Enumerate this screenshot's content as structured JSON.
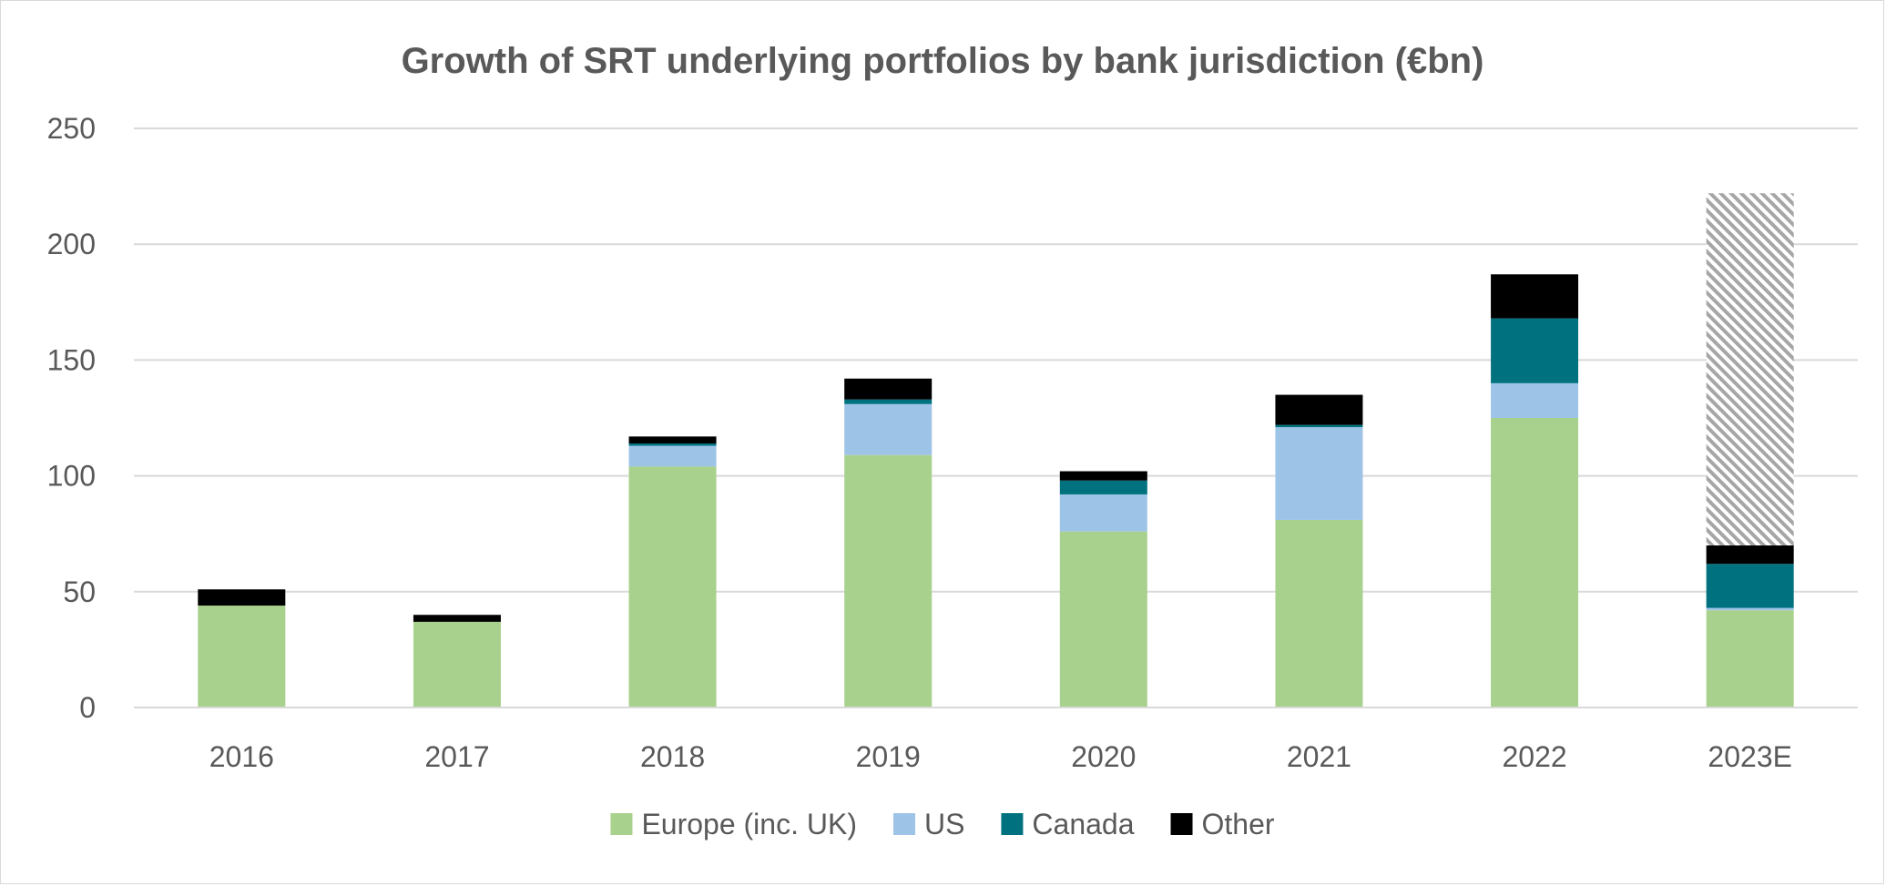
{
  "chart_data": {
    "type": "bar",
    "stacked": true,
    "title": "Growth of SRT underlying portfolios by bank jurisdiction (€bn)",
    "xlabel": "",
    "ylabel": "",
    "ylim": [
      0,
      250
    ],
    "yticks": [
      0,
      50,
      100,
      150,
      200,
      250
    ],
    "grid": true,
    "legend_position": "bottom",
    "categories": [
      "2016",
      "2017",
      "2018",
      "2019",
      "2020",
      "2021",
      "2022",
      "2023E"
    ],
    "series": [
      {
        "name": "Europe (inc. UK)",
        "color": "#a9d18e",
        "values": [
          44,
          37,
          104,
          109,
          76,
          81,
          125,
          42
        ]
      },
      {
        "name": "US",
        "color": "#9dc3e6",
        "values": [
          0,
          0,
          9,
          22,
          16,
          40,
          15,
          1
        ]
      },
      {
        "name": "Canada",
        "color": "#00727f",
        "values": [
          0,
          0,
          1,
          2,
          6,
          1,
          28,
          19
        ]
      },
      {
        "name": "Other",
        "color": "#000000",
        "values": [
          7,
          3,
          3,
          9,
          4,
          13,
          19,
          8
        ]
      }
    ],
    "projection": {
      "category": "2023E",
      "from": 70,
      "to": 222,
      "pattern": "hatched-grey"
    }
  }
}
